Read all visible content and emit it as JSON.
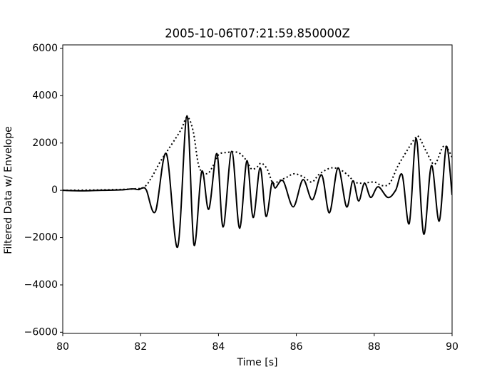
{
  "chart_data": {
    "type": "line",
    "title": "2005-10-06T07:21:59.850000Z",
    "xlabel": "Time [s]",
    "ylabel": "Filtered Data w/ Envelope",
    "xlim": [
      80,
      90
    ],
    "ylim": [
      -6050,
      6150
    ],
    "xticks": [
      80,
      82,
      84,
      86,
      88,
      90
    ],
    "yticks": [
      {
        "value": -6000,
        "label": "−6000"
      },
      {
        "value": -4000,
        "label": "−4000"
      },
      {
        "value": -2000,
        "label": "−2000"
      },
      0,
      2000,
      4000,
      6000
    ],
    "series": [
      {
        "color": "#000000",
        "style": "solid",
        "x": [
          80,
          80.5,
          81,
          81.5,
          81.8,
          81.95,
          82.05,
          82.15,
          82.38,
          82.66,
          82.95,
          83.19,
          83.37,
          83.57,
          83.75,
          83.96,
          84.12,
          84.34,
          84.54,
          84.73,
          84.89,
          85.07,
          85.22,
          85.37,
          85.46,
          85.66,
          85.92,
          86.17,
          86.41,
          86.65,
          86.85,
          87.07,
          87.29,
          87.45,
          87.6,
          87.75,
          87.91,
          88.1,
          88.35,
          88.55,
          88.72,
          88.9,
          89.08,
          89.27,
          89.47,
          89.67,
          89.85,
          90
        ],
        "values": [
          0,
          -20,
          0,
          20,
          60,
          30,
          100,
          0,
          -900,
          1550,
          -2400,
          3150,
          -2300,
          800,
          -800,
          1550,
          -1550,
          1650,
          -1600,
          1250,
          -1150,
          950,
          -1100,
          300,
          100,
          400,
          -700,
          450,
          -400,
          650,
          -950,
          950,
          -700,
          400,
          -450,
          300,
          -300,
          150,
          -300,
          0,
          650,
          -1400,
          2200,
          -1850,
          1050,
          -1300,
          1850,
          -200
        ]
      },
      {
        "color": "#000000",
        "style": "dotted",
        "x": [
          80,
          81,
          81.8,
          82.1,
          82.3,
          82.5,
          82.7,
          82.9,
          83.05,
          83.2,
          83.35,
          83.5,
          83.7,
          83.85,
          84.0,
          84.2,
          84.5,
          84.7,
          84.85,
          85.0,
          85.1,
          85.25,
          85.4,
          85.55,
          85.75,
          85.95,
          86.2,
          86.4,
          86.6,
          86.9,
          87.15,
          87.35,
          87.5,
          87.7,
          88.0,
          88.2,
          88.4,
          88.6,
          88.85,
          89.05,
          89.15,
          89.35,
          89.55,
          89.75,
          89.85,
          90
        ],
        "values": [
          0,
          20,
          60,
          150,
          600,
          1200,
          1700,
          2200,
          2600,
          3100,
          2500,
          1000,
          700,
          1000,
          1500,
          1600,
          1600,
          1300,
          900,
          1000,
          1150,
          900,
          300,
          400,
          550,
          700,
          550,
          350,
          700,
          950,
          850,
          600,
          350,
          300,
          350,
          200,
          300,
          1000,
          1700,
          2200,
          2250,
          1600,
          1100,
          1800,
          1850,
          1400
        ]
      }
    ]
  }
}
